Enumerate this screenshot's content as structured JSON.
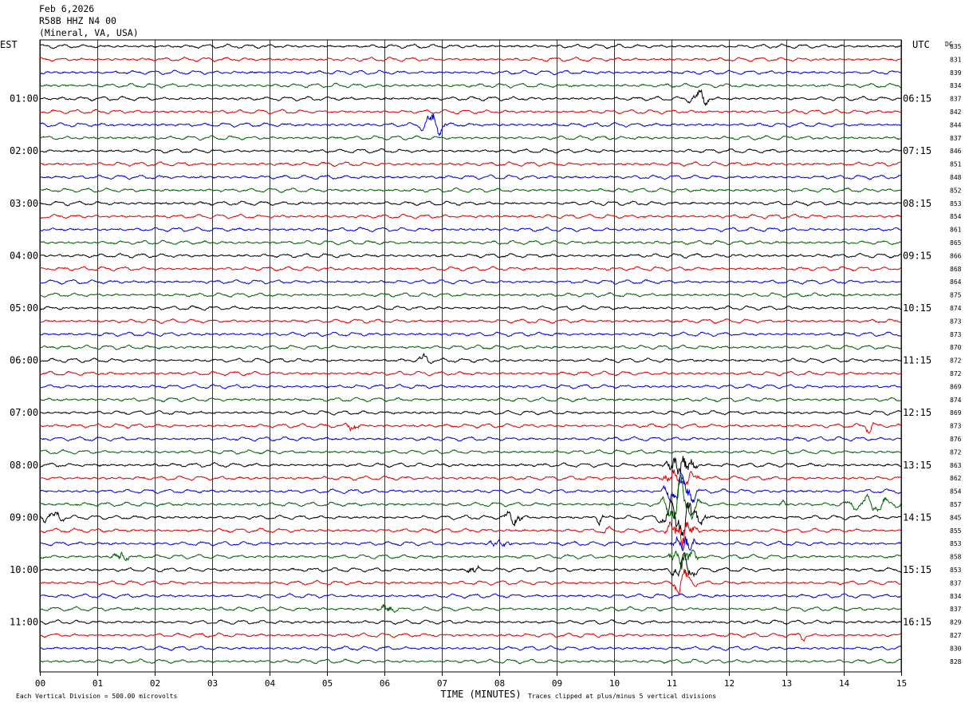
{
  "header": {
    "date": "Feb 6,2026",
    "station": "R58B HHZ N4 00",
    "location": "(Mineral, VA, USA)"
  },
  "chart_data": {
    "type": "helicorder",
    "left_timezone": "EST",
    "right_timezone": "UTC",
    "dc_label": "DC",
    "xlabel": "TIME (MINUTES)",
    "x_ticks": [
      "00",
      "01",
      "02",
      "03",
      "04",
      "05",
      "06",
      "07",
      "08",
      "09",
      "10",
      "11",
      "12",
      "13",
      "14",
      "15"
    ],
    "xlim": [
      0,
      15
    ],
    "minutes_per_line": 15,
    "trace_colors": [
      "#000000",
      "#e00000",
      "#0000e0",
      "#006000"
    ],
    "grid": true,
    "left_hour_labels": [
      "01:00",
      "02:00",
      "03:00",
      "04:00",
      "05:00",
      "06:00",
      "07:00",
      "08:00",
      "09:00",
      "10:00",
      "11:00"
    ],
    "right_hour_labels": [
      "06:15",
      "07:15",
      "08:15",
      "09:15",
      "10:15",
      "11:15",
      "12:15",
      "13:15",
      "14:15",
      "15:15",
      "16:15"
    ],
    "hour_label_first_line": 4,
    "dc_offsets": [
      835,
      831,
      839,
      834,
      837,
      842,
      844,
      837,
      846,
      851,
      848,
      852,
      853,
      854,
      861,
      865,
      866,
      868,
      864,
      875,
      874,
      873,
      873,
      870,
      872,
      872,
      869,
      874,
      869,
      873,
      876,
      872,
      863,
      862,
      854,
      857,
      845,
      855,
      853,
      858,
      853,
      837,
      834,
      837,
      829,
      827,
      830,
      828
    ],
    "events": [
      {
        "line": 4,
        "minute": 11.5,
        "width": 0.25,
        "amp": 1.6
      },
      {
        "line": 6,
        "minute": 6.85,
        "width": 0.3,
        "amp": 2.0
      },
      {
        "line": 24,
        "minute": 6.7,
        "width": 0.15,
        "amp": 1.3
      },
      {
        "line": 29,
        "minute": 5.45,
        "width": 0.15,
        "amp": 1.3
      },
      {
        "line": 29,
        "minute": 14.45,
        "width": 0.12,
        "amp": 1.2
      },
      {
        "line": 32,
        "minute": 11.15,
        "width": 0.35,
        "amp": 4.0
      },
      {
        "line": 33,
        "minute": 11.15,
        "width": 0.35,
        "amp": 4.0
      },
      {
        "line": 34,
        "minute": 11.15,
        "width": 0.35,
        "amp": 4.0
      },
      {
        "line": 35,
        "minute": 11.15,
        "width": 0.4,
        "amp": 4.0
      },
      {
        "line": 35,
        "minute": 12.95,
        "width": 0.1,
        "amp": 1.3
      },
      {
        "line": 35,
        "minute": 14.5,
        "width": 0.6,
        "amp": 1.2
      },
      {
        "line": 36,
        "minute": 8.25,
        "width": 0.25,
        "amp": 1.8
      },
      {
        "line": 36,
        "minute": 9.75,
        "width": 0.1,
        "amp": 1.5
      },
      {
        "line": 36,
        "minute": 11.2,
        "width": 0.5,
        "amp": 4.0
      },
      {
        "line": 36,
        "minute": 0.2,
        "width": 0.3,
        "amp": 1.3
      },
      {
        "line": 37,
        "minute": 11.2,
        "width": 0.35,
        "amp": 4.0
      },
      {
        "line": 37,
        "minute": 9.85,
        "width": 0.1,
        "amp": 1.2
      },
      {
        "line": 38,
        "minute": 8.0,
        "width": 0.25,
        "amp": 1.7
      },
      {
        "line": 38,
        "minute": 11.2,
        "width": 0.3,
        "amp": 3.5
      },
      {
        "line": 39,
        "minute": 1.4,
        "width": 0.2,
        "amp": 1.9
      },
      {
        "line": 39,
        "minute": 11.2,
        "width": 0.3,
        "amp": 3.5
      },
      {
        "line": 40,
        "minute": 7.55,
        "width": 0.15,
        "amp": 1.3
      },
      {
        "line": 40,
        "minute": 11.2,
        "width": 0.3,
        "amp": 3.0
      },
      {
        "line": 41,
        "minute": 11.2,
        "width": 0.25,
        "amp": 2.5
      },
      {
        "line": 43,
        "minute": 6.05,
        "width": 0.2,
        "amp": 1.3
      },
      {
        "line": 45,
        "minute": 13.3,
        "width": 0.12,
        "amp": 1.2
      }
    ],
    "footer_left": "Each Vertical Division =  500.00 microvolts",
    "footer_right": "Traces clipped at plus/minus 5 vertical divisions"
  }
}
